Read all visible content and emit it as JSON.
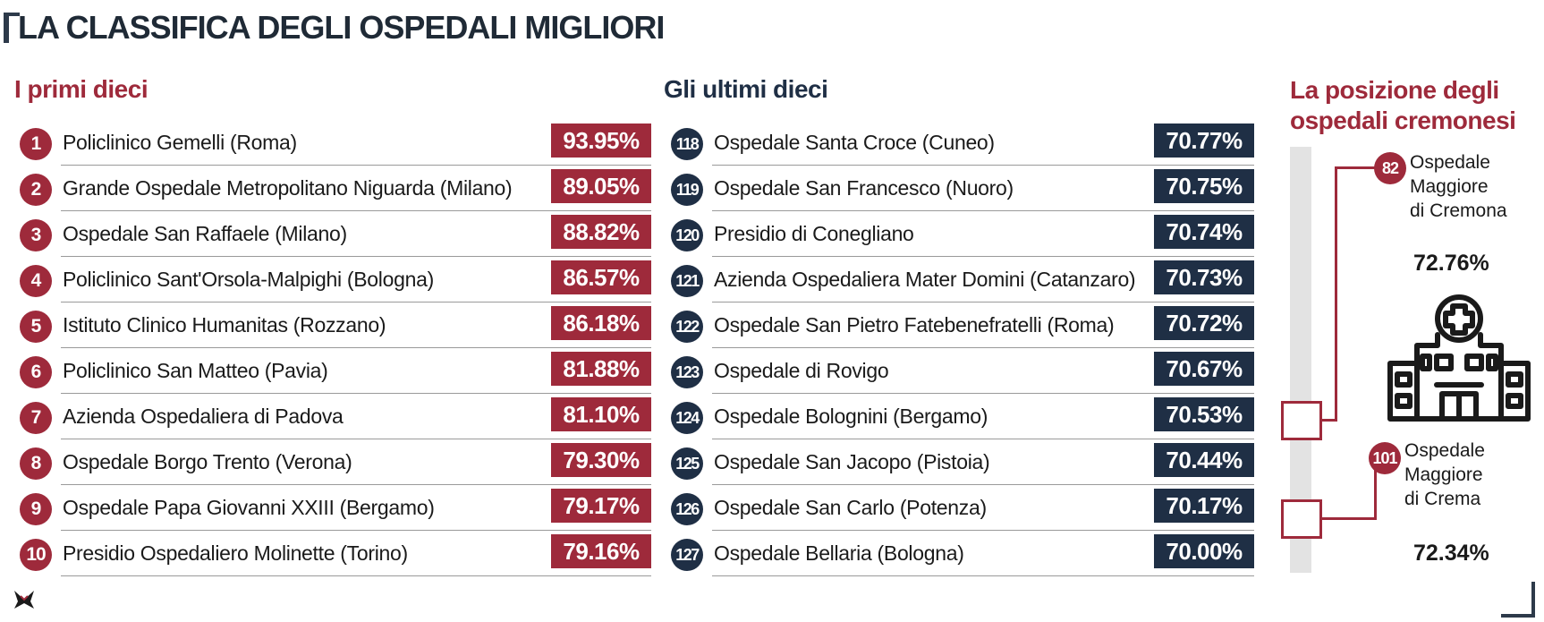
{
  "title": "LA CLASSIFICA DEGLI OSPEDALI MIGLIORI",
  "left_section": {
    "heading": "I primi dieci",
    "rows": [
      {
        "rank": "1",
        "name": "Policlinico Gemelli (Roma)",
        "value": "93.95%"
      },
      {
        "rank": "2",
        "name": "Grande Ospedale Metropolitano Niguarda (Milano)",
        "value": "89.05%"
      },
      {
        "rank": "3",
        "name": "Ospedale San Raffaele (Milano)",
        "value": "88.82%"
      },
      {
        "rank": "4",
        "name": "Policlinico Sant'Orsola-Malpighi (Bologna)",
        "value": "86.57%"
      },
      {
        "rank": "5",
        "name": "Istituto Clinico Humanitas (Rozzano)",
        "value": "86.18%"
      },
      {
        "rank": "6",
        "name": "Policlinico San Matteo (Pavia)",
        "value": "81.88%"
      },
      {
        "rank": "7",
        "name": "Azienda Ospedaliera di Padova",
        "value": "81.10%"
      },
      {
        "rank": "8",
        "name": "Ospedale Borgo Trento (Verona)",
        "value": "79.30%"
      },
      {
        "rank": "9",
        "name": "Ospedale Papa Giovanni XXIII (Bergamo)",
        "value": "79.17%"
      },
      {
        "rank": "10",
        "name": "Presidio Ospedaliero Molinette (Torino)",
        "value": "79.16%"
      }
    ]
  },
  "middle_section": {
    "heading": "Gli ultimi dieci",
    "rows": [
      {
        "rank": "118",
        "name": "Ospedale Santa Croce (Cuneo)",
        "value": "70.77%"
      },
      {
        "rank": "119",
        "name": "Ospedale San Francesco (Nuoro)",
        "value": "70.75%"
      },
      {
        "rank": "120",
        "name": "Presidio di Conegliano",
        "value": "70.74%"
      },
      {
        "rank": "121",
        "name": "Azienda Ospedaliera Mater Domini (Catanzaro)",
        "value": "70.73%"
      },
      {
        "rank": "122",
        "name": "Ospedale San Pietro Fatebenefratelli (Roma)",
        "value": "70.72%"
      },
      {
        "rank": "123",
        "name": "Ospedale di Rovigo",
        "value": "70.67%"
      },
      {
        "rank": "124",
        "name": "Ospedale Bolognini (Bergamo)",
        "value": "70.53%"
      },
      {
        "rank": "125",
        "name": "Ospedale San Jacopo (Pistoia)",
        "value": "70.44%"
      },
      {
        "rank": "126",
        "name": "Ospedale San Carlo (Potenza)",
        "value": "70.17%"
      },
      {
        "rank": "127",
        "name": "Ospedale Bellaria (Bologna)",
        "value": "70.00%"
      }
    ]
  },
  "right_section": {
    "heading": "La posizione degli ospedali cremonesi",
    "hospitals": [
      {
        "rank": "82",
        "name": "Ospedale\nMaggiore\ndi Cremona",
        "value": "72.76%"
      },
      {
        "rank": "101",
        "name": "Ospedale\nMaggiore\ndi Crema",
        "value": "72.34%"
      }
    ],
    "icon": "hospital-building-icon"
  },
  "colors": {
    "top_accent": "#9e2a3b",
    "bottom_accent": "#1f2f45",
    "track": "#e3e3e3"
  },
  "chart_data": {
    "type": "table",
    "title": "LA CLASSIFICA DEGLI OSPEDALI MIGLIORI",
    "tables": [
      {
        "name": "I primi dieci",
        "columns": [
          "rank",
          "hospital",
          "value"
        ],
        "rows": [
          [
            1,
            "Policlinico Gemelli (Roma)",
            93.95
          ],
          [
            2,
            "Grande Ospedale Metropolitano Niguarda (Milano)",
            89.05
          ],
          [
            3,
            "Ospedale San Raffaele (Milano)",
            88.82
          ],
          [
            4,
            "Policlinico Sant'Orsola-Malpighi (Bologna)",
            86.57
          ],
          [
            5,
            "Istituto Clinico Humanitas (Rozzano)",
            86.18
          ],
          [
            6,
            "Policlinico San Matteo (Pavia)",
            81.88
          ],
          [
            7,
            "Azienda Ospedaliera di Padova",
            81.1
          ],
          [
            8,
            "Ospedale Borgo Trento (Verona)",
            79.3
          ],
          [
            9,
            "Ospedale Papa Giovanni XXIII (Bergamo)",
            79.17
          ],
          [
            10,
            "Presidio Ospedaliero Molinette (Torino)",
            79.16
          ]
        ]
      },
      {
        "name": "Gli ultimi dieci",
        "columns": [
          "rank",
          "hospital",
          "value"
        ],
        "rows": [
          [
            118,
            "Ospedale Santa Croce (Cuneo)",
            70.77
          ],
          [
            119,
            "Ospedale San Francesco (Nuoro)",
            70.75
          ],
          [
            120,
            "Presidio di Conegliano",
            70.74
          ],
          [
            121,
            "Azienda Ospedaliera Mater Domini (Catanzaro)",
            70.73
          ],
          [
            122,
            "Ospedale San Pietro Fatebenefratelli (Roma)",
            70.72
          ],
          [
            123,
            "Ospedale di Rovigo",
            70.67
          ],
          [
            124,
            "Ospedale Bolognini (Bergamo)",
            70.53
          ],
          [
            125,
            "Ospedale San Jacopo (Pistoia)",
            70.44
          ],
          [
            126,
            "Ospedale San Carlo (Potenza)",
            70.17
          ],
          [
            127,
            "Ospedale Bellaria (Bologna)",
            70.0
          ]
        ]
      },
      {
        "name": "La posizione degli ospedali cremonesi",
        "columns": [
          "rank",
          "hospital",
          "value"
        ],
        "rows": [
          [
            82,
            "Ospedale Maggiore di Cremona",
            72.76
          ],
          [
            101,
            "Ospedale Maggiore di Crema",
            72.34
          ]
        ]
      }
    ]
  }
}
